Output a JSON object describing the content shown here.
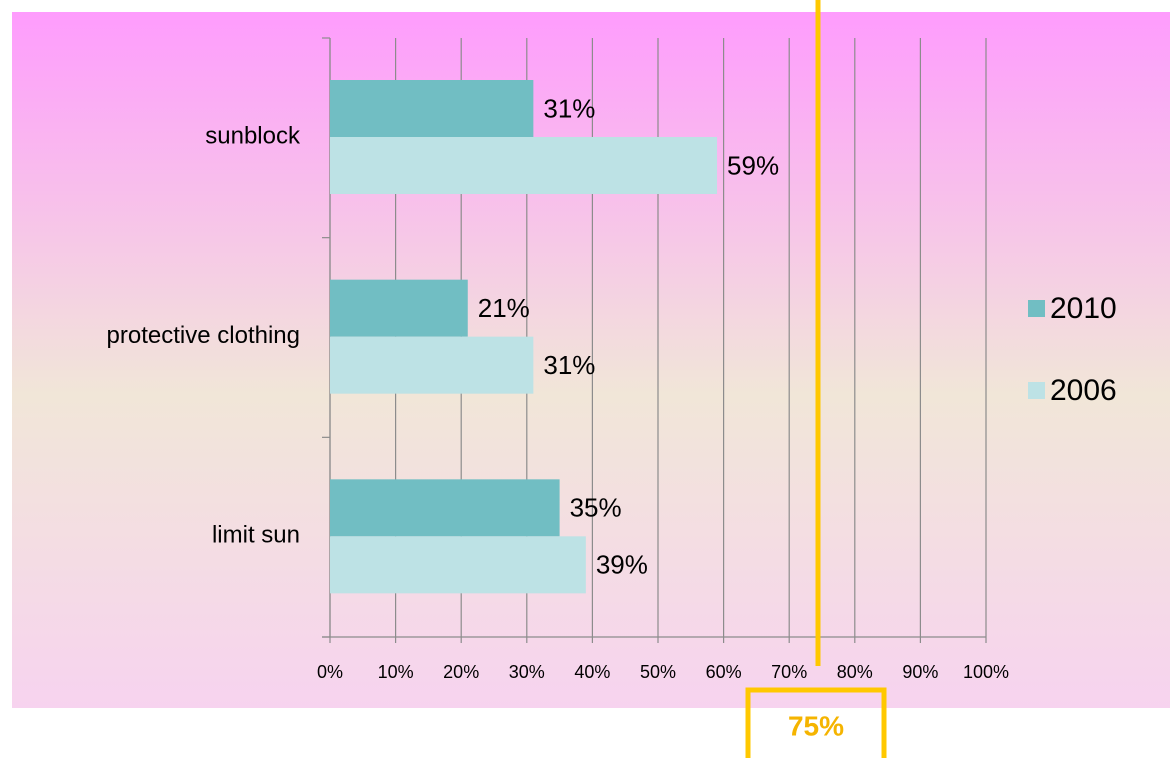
{
  "chart_data": {
    "type": "hbar",
    "categories": [
      "sunblock",
      "protective clothing",
      "limit sun"
    ],
    "series": [
      {
        "name": "2010",
        "color": "#71bec3",
        "values": [
          31,
          21,
          35
        ],
        "value_labels": [
          "31%",
          "21%",
          "35%"
        ]
      },
      {
        "name": "2006",
        "color": "#bde2e5",
        "values": [
          59,
          31,
          39
        ],
        "value_labels": [
          "59%",
          "31%",
          "39%"
        ]
      }
    ],
    "xlim": [
      0,
      100
    ],
    "xticks": [
      {
        "value": 0,
        "label": "0%"
      },
      {
        "value": 10,
        "label": "10%"
      },
      {
        "value": 20,
        "label": "20%"
      },
      {
        "value": 30,
        "label": "30%"
      },
      {
        "value": 40,
        "label": "40%"
      },
      {
        "value": 50,
        "label": "50%"
      },
      {
        "value": 60,
        "label": "60%"
      },
      {
        "value": 70,
        "label": "70%"
      },
      {
        "value": 80,
        "label": "80%"
      },
      {
        "value": 90,
        "label": "90%"
      },
      {
        "value": 100,
        "label": "100%"
      }
    ],
    "grid": true,
    "legend": "right",
    "reference_line": {
      "value": 75,
      "label": "75%",
      "color": "#ffc800"
    }
  }
}
